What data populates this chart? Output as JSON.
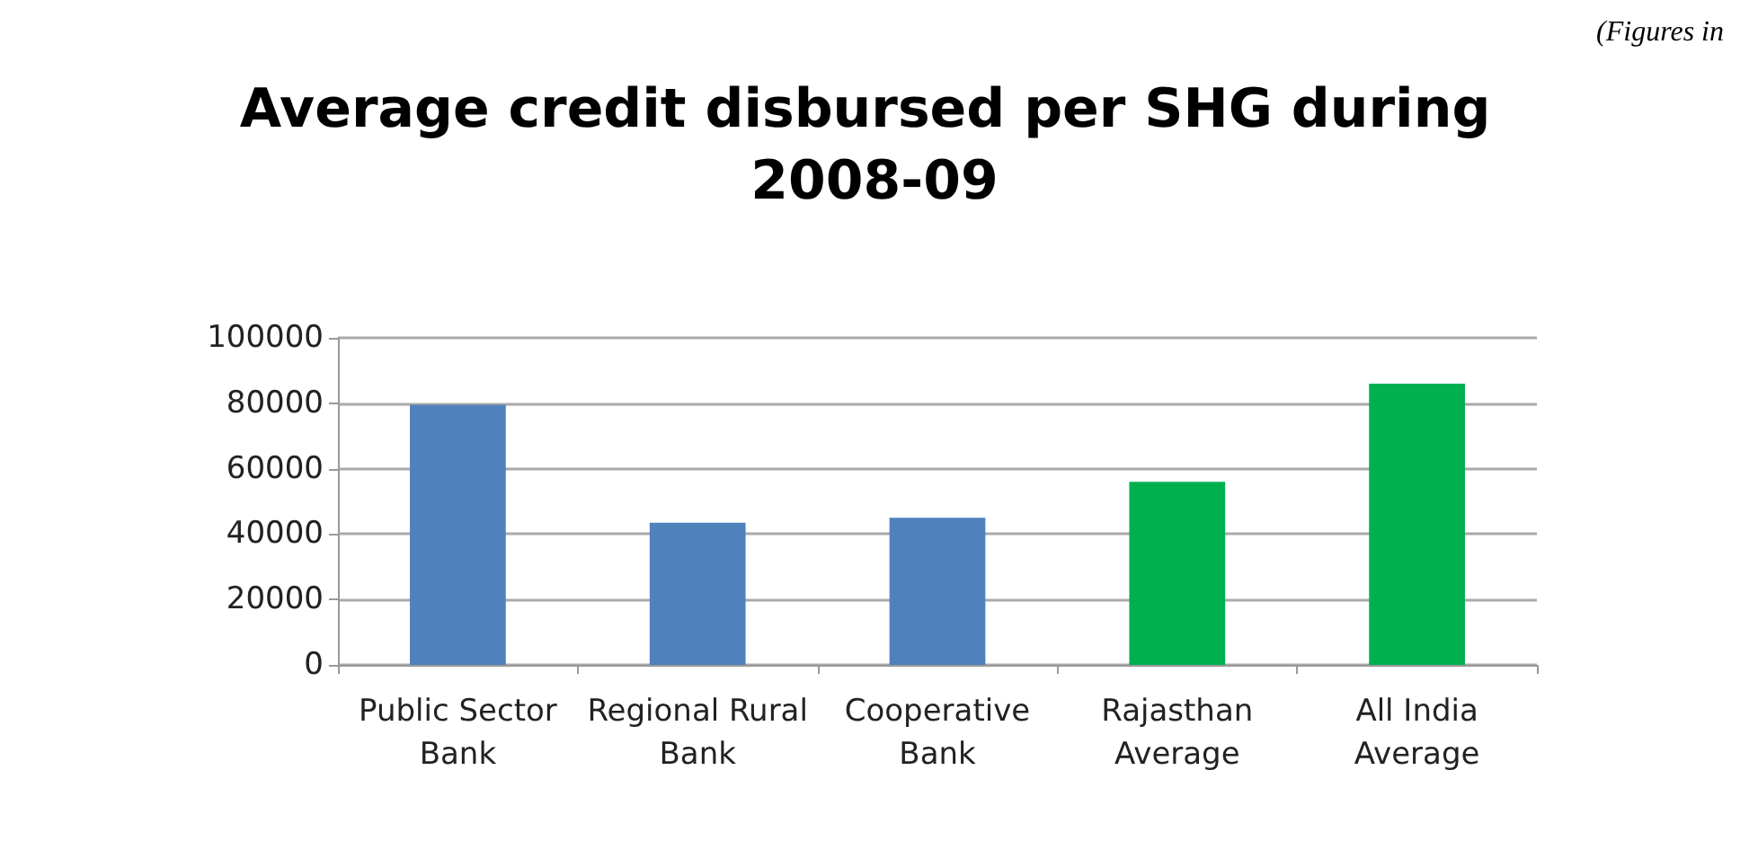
{
  "chart_data": {
    "type": "bar",
    "title": "Average credit disbursed per SHG during 2008-09",
    "categories": [
      "Public Sector Bank",
      "Regional Rural Bank",
      "Cooperative Bank",
      "Rajasthan Average",
      "All India Average"
    ],
    "values": [
      79500,
      43500,
      45000,
      56000,
      86000
    ],
    "colors": [
      "#4f81bd",
      "#4f81bd",
      "#4f81bd",
      "#00b050",
      "#00b050"
    ],
    "ylim": [
      0,
      100000
    ],
    "yticks": [
      0,
      20000,
      40000,
      60000,
      80000,
      100000
    ],
    "grid": "y",
    "annotations": [
      "(Figures in"
    ]
  }
}
